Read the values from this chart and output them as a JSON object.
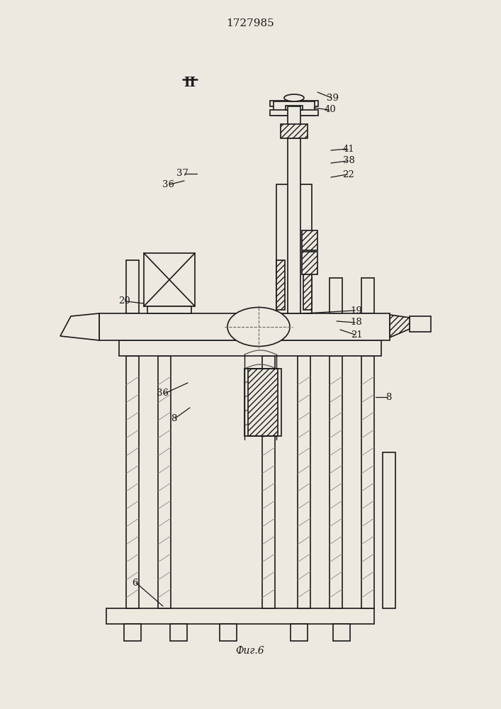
{
  "title": "1727985",
  "fig_label": "Фиг.6",
  "bg": "#ede9e0",
  "lc": "#1a1a1a",
  "figsize": [
    7.07,
    10.0
  ],
  "dpi": 100,
  "section_label": "II"
}
